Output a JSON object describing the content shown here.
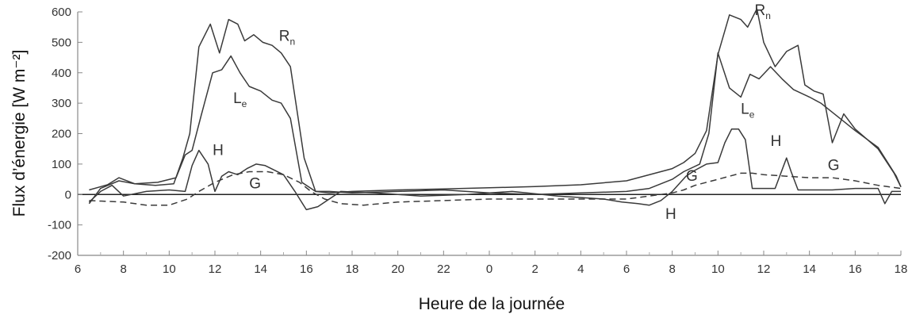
{
  "chart_data": {
    "type": "line",
    "title": "",
    "xlabel": "Heure de la journée",
    "ylabel": "Flux d’énergie [W m⁻²]",
    "ylim": [
      -200,
      600
    ],
    "xlim": [
      6,
      42
    ],
    "yticks": [
      "600",
      "500",
      "400",
      "300",
      "200",
      "100",
      "0",
      "-100",
      "-200"
    ],
    "xticks": [
      "6",
      "8",
      "10",
      "12",
      "14",
      "16",
      "18",
      "20",
      "22",
      "0",
      "2",
      "4",
      "6",
      "8",
      "10",
      "12",
      "14",
      "16",
      "18"
    ],
    "grid": false,
    "legend": "none",
    "series": [
      {
        "name": "Rn",
        "style": "solid",
        "label_text": "R",
        "label_sub": "n",
        "x": [
          6.5,
          7.3,
          7.8,
          8.5,
          9.4,
          10.2,
          10.6,
          10.9,
          11.3,
          11.8,
          12.2,
          12.6,
          13.0,
          13.3,
          13.7,
          14.1,
          14.5,
          14.9,
          15.3,
          15.9,
          16.4,
          17.0,
          18.0,
          20.0,
          22.0,
          24.0,
          26.0,
          28.0,
          30.0,
          32.0,
          32.5,
          33.0,
          33.5,
          34.0,
          34.5,
          35.0,
          35.3,
          35.7,
          36.0,
          36.5,
          37.0,
          37.5,
          37.8,
          38.2,
          38.6,
          39.0,
          39.5,
          40.0,
          41.0,
          41.7,
          42.0
        ],
        "y": [
          15,
          32,
          55,
          35,
          30,
          35,
          120,
          200,
          485,
          560,
          465,
          575,
          560,
          505,
          525,
          500,
          490,
          465,
          420,
          120,
          10,
          5,
          10,
          15,
          18,
          22,
          26,
          32,
          45,
          85,
          105,
          135,
          210,
          460,
          590,
          575,
          550,
          610,
          500,
          420,
          470,
          490,
          360,
          340,
          330,
          170,
          265,
          215,
          150,
          70,
          25
        ]
      },
      {
        "name": "Le",
        "style": "solid",
        "label_text": "L",
        "label_sub": "e",
        "x": [
          6.5,
          7.0,
          7.8,
          8.5,
          9.5,
          10.3,
          10.7,
          11.0,
          11.4,
          11.9,
          12.3,
          12.7,
          13.1,
          13.5,
          14.0,
          14.5,
          14.9,
          15.3,
          15.8,
          16.4,
          17.0,
          18.0,
          20.0,
          22.0,
          24.0,
          26.0,
          28.0,
          30.0,
          31.0,
          32.0,
          32.5,
          33.2,
          33.6,
          34.0,
          34.5,
          35.0,
          35.4,
          35.8,
          36.3,
          36.8,
          37.3,
          38.0,
          38.5,
          39.0,
          39.5,
          40.0,
          41.0,
          41.8,
          42.0
        ],
        "y": [
          -30,
          20,
          45,
          35,
          40,
          55,
          130,
          145,
          260,
          400,
          410,
          455,
          400,
          355,
          340,
          310,
          300,
          250,
          40,
          10,
          10,
          5,
          10,
          15,
          5,
          0,
          5,
          10,
          20,
          50,
          75,
          100,
          200,
          465,
          350,
          320,
          395,
          380,
          420,
          380,
          345,
          320,
          300,
          270,
          240,
          210,
          155,
          60,
          25
        ]
      },
      {
        "name": "H",
        "style": "solid",
        "label_text": "H",
        "label_sub": "",
        "x": [
          6.5,
          7.0,
          7.5,
          8.0,
          9.0,
          10.0,
          10.7,
          11.0,
          11.3,
          11.7,
          12.0,
          12.3,
          12.6,
          13.0,
          13.4,
          13.8,
          14.2,
          14.6,
          15.0,
          15.5,
          16.0,
          16.5,
          17.5,
          19.0,
          21.0,
          23.0,
          25.0,
          27.0,
          29.0,
          29.8,
          30.5,
          31.0,
          31.5,
          32.0,
          32.6,
          33.0,
          33.5,
          34.0,
          34.3,
          34.6,
          34.9,
          35.2,
          35.5,
          36.0,
          36.5,
          37.0,
          37.2,
          37.5,
          38.0,
          39.0,
          40.0,
          41.0,
          41.3,
          41.6,
          42.0
        ],
        "y": [
          -25,
          10,
          30,
          -5,
          10,
          15,
          10,
          95,
          145,
          100,
          10,
          60,
          75,
          65,
          85,
          100,
          95,
          80,
          65,
          10,
          -50,
          -40,
          10,
          5,
          -5,
          0,
          10,
          -5,
          -15,
          -25,
          -30,
          -35,
          -20,
          10,
          60,
          80,
          100,
          105,
          170,
          215,
          215,
          180,
          20,
          20,
          20,
          120,
          75,
          15,
          15,
          15,
          20,
          20,
          -30,
          10,
          10
        ]
      },
      {
        "name": "G",
        "style": "dashed",
        "label_text": "G",
        "label_sub": "",
        "x": [
          6.5,
          8.0,
          9.0,
          10.0,
          10.8,
          11.3,
          12.0,
          12.8,
          13.5,
          14.3,
          15.0,
          15.7,
          16.2,
          16.8,
          17.5,
          18.5,
          20.0,
          22.0,
          24.0,
          26.0,
          28.0,
          29.0,
          30.0,
          31.0,
          32.0,
          32.5,
          33.0,
          33.5,
          34.0,
          34.5,
          35.0,
          35.5,
          36.0,
          37.0,
          38.0,
          39.0,
          40.0,
          41.0,
          42.0
        ],
        "y": [
          -20,
          -25,
          -35,
          -35,
          -15,
          10,
          40,
          65,
          75,
          75,
          65,
          40,
          10,
          -15,
          -30,
          -35,
          -25,
          -20,
          -15,
          -15,
          -15,
          -15,
          -15,
          -5,
          5,
          15,
          30,
          40,
          50,
          60,
          70,
          70,
          65,
          60,
          55,
          55,
          45,
          30,
          20
        ]
      }
    ]
  }
}
